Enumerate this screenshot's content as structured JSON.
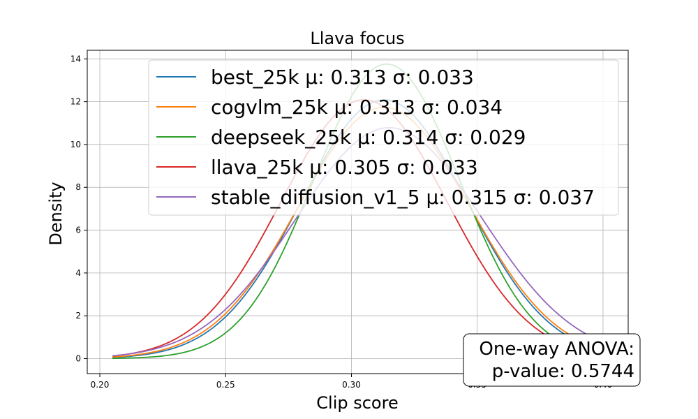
{
  "chart_data": {
    "type": "line",
    "title": "Llava focus",
    "xlabel": "Clip score",
    "ylabel": "Density",
    "xlim": [
      0.195,
      0.41
    ],
    "ylim": [
      -0.7,
      14.4
    ],
    "x_range": [
      0.205,
      0.405
    ],
    "xticks": [
      0.2,
      0.25,
      0.3,
      0.35,
      0.4
    ],
    "xtick_labels": [
      "0.20",
      "0.25",
      "0.30",
      "0.35",
      "0.40"
    ],
    "yticks": [
      0,
      2,
      4,
      6,
      8,
      10,
      12,
      14
    ],
    "ytick_labels": [
      "0",
      "2",
      "4",
      "6",
      "8",
      "10",
      "12",
      "14"
    ],
    "grid": true,
    "legend_position": "top-right",
    "series": [
      {
        "name": "best_25k",
        "legend_label": "best_25k    μ: 0.313 σ: 0.033",
        "mu": 0.313,
        "sigma": 0.033,
        "color": "#1f77b4"
      },
      {
        "name": "cogvlm_25k",
        "legend_label": "cogvlm_25k    μ: 0.313 σ: 0.034",
        "mu": 0.313,
        "sigma": 0.034,
        "color": "#ff7f0e"
      },
      {
        "name": "deepseek_25k",
        "legend_label": "deepseek_25k    μ: 0.314 σ: 0.029",
        "mu": 0.314,
        "sigma": 0.029,
        "color": "#2ca02c"
      },
      {
        "name": "llava_25k",
        "legend_label": "llava_25k    μ: 0.305 σ: 0.033",
        "mu": 0.305,
        "sigma": 0.033,
        "color": "#d62728"
      },
      {
        "name": "stable_diffusion_v1_5",
        "legend_label": "stable_diffusion_v1_5    μ: 0.315 σ: 0.037",
        "mu": 0.315,
        "sigma": 0.037,
        "color": "#9467bd"
      }
    ],
    "annotation": {
      "line1": "One-way ANOVA:",
      "line2": "p-value: 0.5744"
    }
  }
}
